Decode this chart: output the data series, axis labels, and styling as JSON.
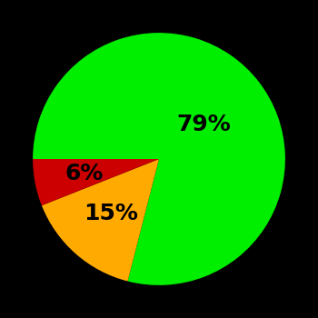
{
  "slices": [
    79,
    15,
    6
  ],
  "colors": [
    "#00ee00",
    "#ffaa00",
    "#cc0000"
  ],
  "labels": [
    "79%",
    "15%",
    "6%"
  ],
  "background_color": "#000000",
  "label_fontsize": 18,
  "label_fontweight": "bold",
  "startangle": 180,
  "counterclock": false,
  "figsize": [
    3.5,
    3.5
  ],
  "dpi": 100,
  "label_radii": [
    0.45,
    0.58,
    0.6
  ]
}
